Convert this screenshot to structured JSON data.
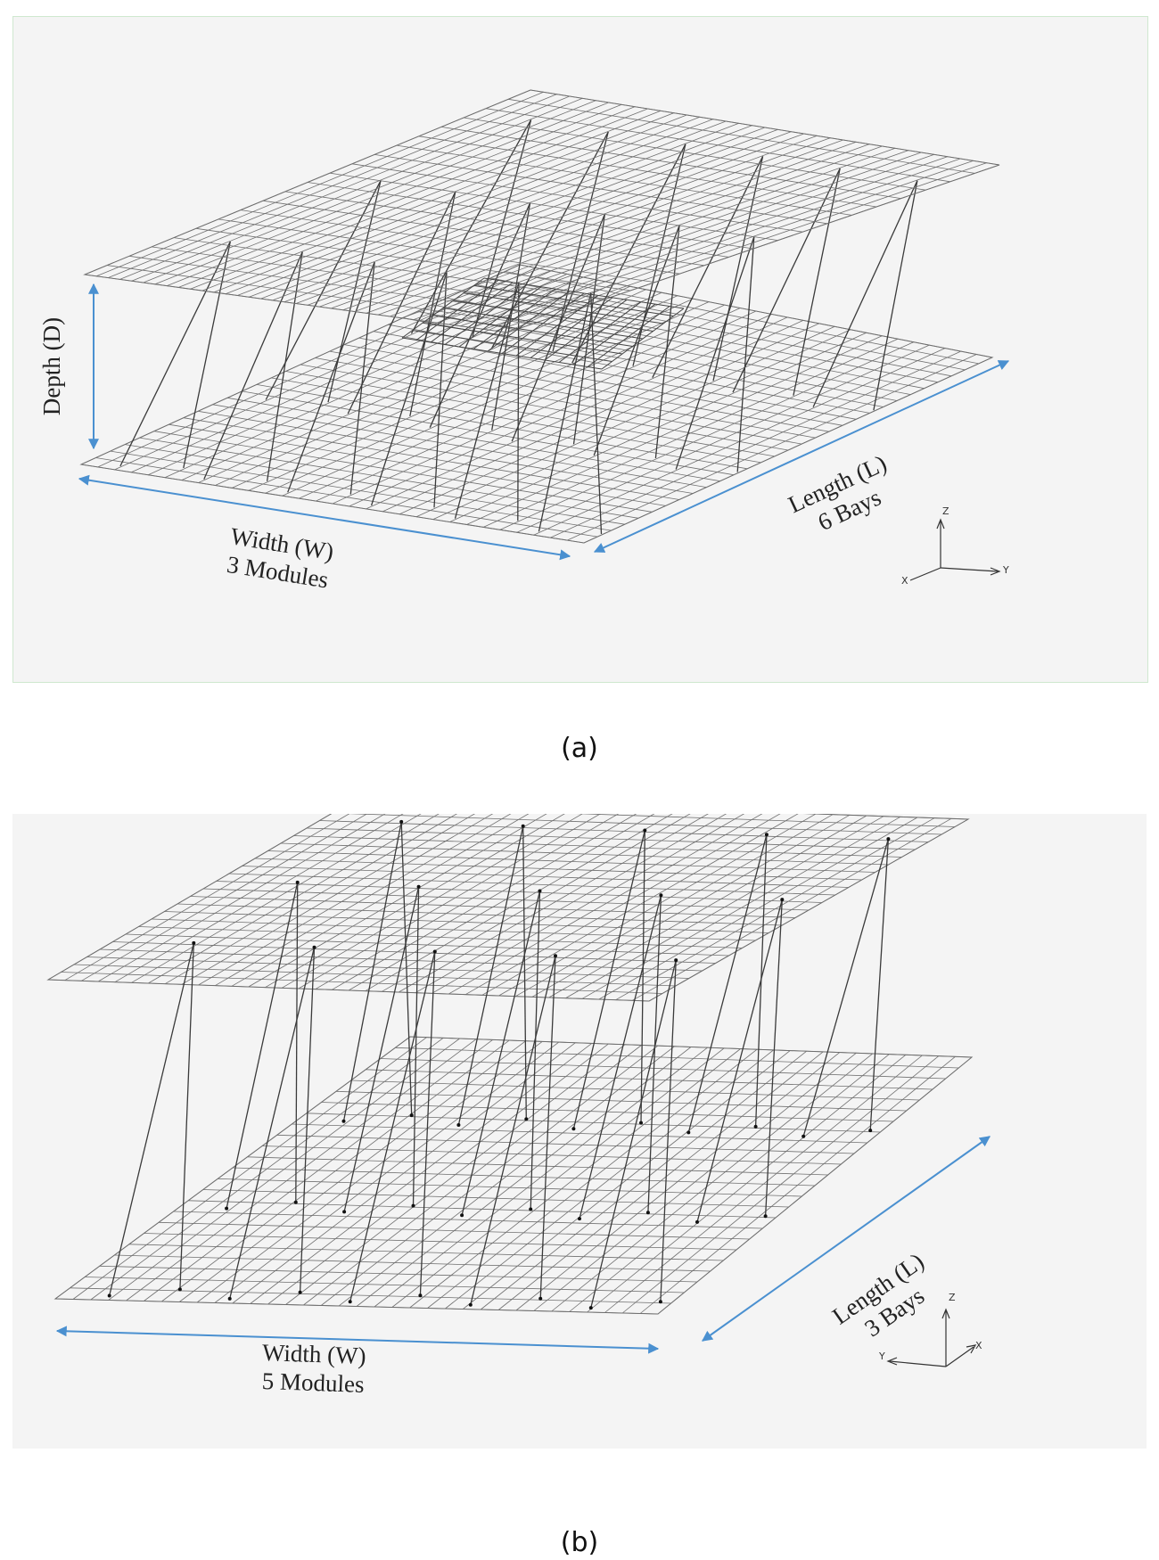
{
  "figure_a": {
    "caption": "(a)",
    "depth_label": "Depth (D)",
    "width_label": "Width (W)",
    "width_sub": "3 Modules",
    "length_label": "Length (L)",
    "length_sub": "6 Bays",
    "axes": {
      "z": "Z",
      "y": "Y",
      "x": "X"
    }
  },
  "figure_b": {
    "caption": "(b)",
    "width_label": "Width (W)",
    "width_sub": "5 Modules",
    "length_label": "Length (L)",
    "length_sub": "3 Bays",
    "axes": {
      "z": "Z",
      "y": "Y",
      "x": "X"
    }
  },
  "colors": {
    "panel_bg": "#f4f4f4",
    "mesh": "#6f6f6f",
    "strut": "#3a3a3a",
    "dimension_arrow": "#4a90d0"
  }
}
